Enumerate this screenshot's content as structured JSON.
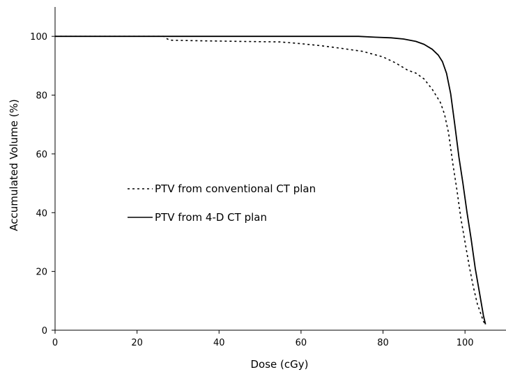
{
  "chart_data": {
    "type": "line",
    "xlabel": "Dose (cGy)",
    "ylabel": "Accumulated Volume (%)",
    "xlim": [
      0,
      110
    ],
    "ylim": [
      0,
      110
    ],
    "xticks": [
      0,
      20,
      40,
      60,
      80,
      100
    ],
    "yticks": [
      0,
      20,
      40,
      60,
      80,
      100
    ],
    "grid": false,
    "legend_position": "center-left",
    "series": [
      {
        "name": "PTV from conventional CT plan",
        "style": "dotted",
        "color": "#000000",
        "x": [
          0,
          26.5,
          27,
          28,
          35,
          45,
          55,
          60,
          65,
          70,
          75,
          80,
          83,
          86,
          88,
          90,
          92,
          94,
          95,
          96,
          97,
          98,
          99,
          100,
          101,
          102,
          103,
          104,
          104.5,
          105
        ],
        "y": [
          100,
          100,
          99.4,
          98.7,
          98.5,
          98.3,
          98.1,
          97.5,
          96.8,
          95.9,
          94.9,
          93.0,
          91.0,
          88.5,
          87.5,
          85.5,
          82,
          77.5,
          73.5,
          67,
          57,
          48,
          38,
          30,
          22,
          15,
          9,
          5,
          3,
          2
        ]
      },
      {
        "name": "PTV from 4-D CT plan",
        "style": "solid",
        "color": "#000000",
        "x": [
          0,
          50,
          74,
          78,
          82,
          85,
          88,
          90,
          92,
          93.5,
          94.5,
          95.5,
          96.5,
          97.5,
          98.5,
          99.5,
          100.5,
          101.5,
          102.5,
          103.5,
          104.5,
          105
        ],
        "y": [
          100,
          100,
          100,
          99.7,
          99.5,
          99.1,
          98.3,
          97.3,
          95.6,
          93.6,
          91.4,
          87.4,
          80.5,
          70,
          59,
          50,
          40,
          31,
          21,
          13,
          5,
          2
        ]
      }
    ]
  }
}
